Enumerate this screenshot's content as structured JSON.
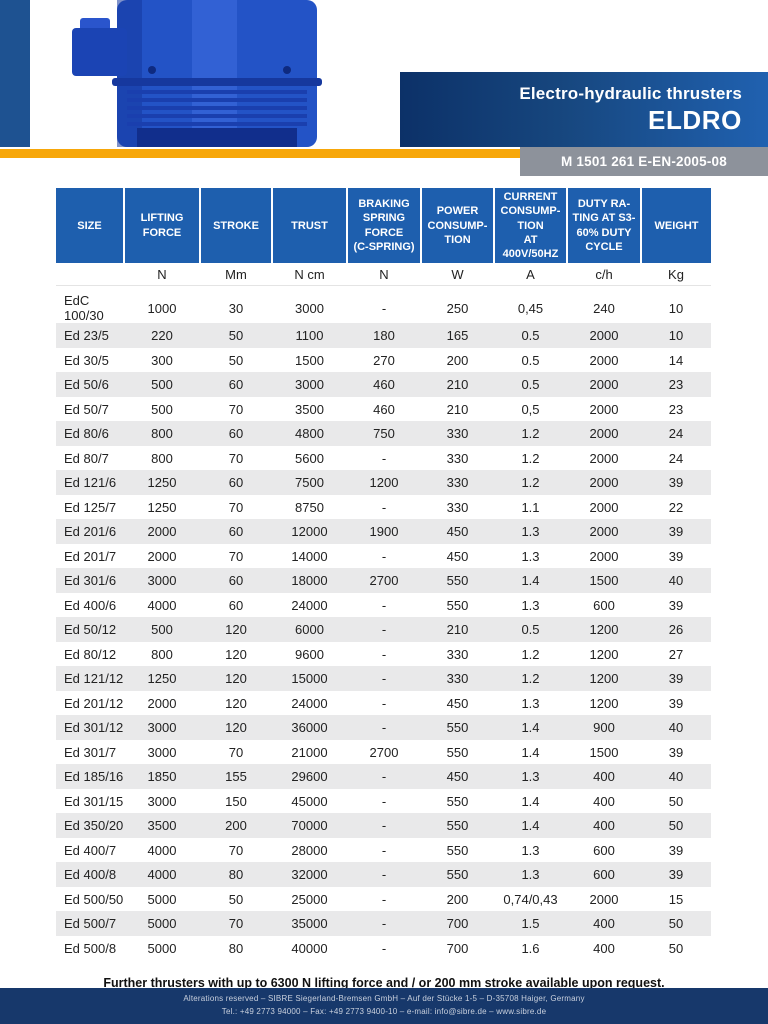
{
  "header": {
    "title_line1": "Electro-hydraulic thrusters",
    "title_line2": "ELDRO",
    "doc_number": "M 1501 261 E-EN-2005-08"
  },
  "colors": {
    "table_header_blue": "#1e5fae",
    "banner_gradient_start": "#0c3168",
    "banner_gradient_end": "#2061b0",
    "accent_orange": "#f7a70a",
    "doc_box_grey": "#8d929b",
    "row_alt_grey": "#e9e9ea",
    "footer_navy": "#17386b"
  },
  "table": {
    "headers": [
      "SIZE",
      "LIFTING\nFORCE",
      "STROKE",
      "TRUST",
      "BRAKING\nSPRING\nFORCE\n(C-SPRING)",
      "POWER\nCONSUMP-\nTION",
      "CURRENT\nCONSUMP-\nTION\nAT\n400V/50HZ",
      "DUTY RA-\nTING AT S3-\n60% DUTY\nCYCLE",
      "WEIGHT"
    ],
    "units": [
      "",
      "N",
      "Mm",
      "N cm",
      "N",
      "W",
      "A",
      "c/h",
      "Kg"
    ],
    "rows": [
      [
        "EdC 100/30",
        "1000",
        "30",
        "3000",
        "-",
        "250",
        "0,45",
        "240",
        "10"
      ],
      [
        "Ed 23/5",
        "220",
        "50",
        "1100",
        "180",
        "165",
        "0.5",
        "2000",
        "10"
      ],
      [
        "Ed 30/5",
        "300",
        "50",
        "1500",
        "270",
        "200",
        "0.5",
        "2000",
        "14"
      ],
      [
        "Ed 50/6",
        "500",
        "60",
        "3000",
        "460",
        "210",
        "0.5",
        "2000",
        "23"
      ],
      [
        "Ed 50/7",
        "500",
        "70",
        "3500",
        "460",
        "210",
        "0,5",
        "2000",
        "23"
      ],
      [
        "Ed 80/6",
        "800",
        "60",
        "4800",
        "750",
        "330",
        "1.2",
        "2000",
        "24"
      ],
      [
        "Ed 80/7",
        "800",
        "70",
        "5600",
        "-",
        "330",
        "1.2",
        "2000",
        "24"
      ],
      [
        "Ed 121/6",
        "1250",
        "60",
        "7500",
        "1200",
        "330",
        "1.2",
        "2000",
        "39"
      ],
      [
        "Ed 125/7",
        "1250",
        "70",
        "8750",
        "-",
        "330",
        "1.1",
        "2000",
        "22"
      ],
      [
        "Ed 201/6",
        "2000",
        "60",
        "12000",
        "1900",
        "450",
        "1.3",
        "2000",
        "39"
      ],
      [
        "Ed 201/7",
        "2000",
        "70",
        "14000",
        "-",
        "450",
        "1.3",
        "2000",
        "39"
      ],
      [
        "Ed 301/6",
        "3000",
        "60",
        "18000",
        "2700",
        "550",
        "1.4",
        "1500",
        "40"
      ],
      [
        "Ed 400/6",
        "4000",
        "60",
        "24000",
        "-",
        "550",
        "1.3",
        "600",
        "39"
      ],
      [
        "Ed 50/12",
        "500",
        "120",
        "6000",
        "-",
        "210",
        "0.5",
        "1200",
        "26"
      ],
      [
        "Ed 80/12",
        "800",
        "120",
        "9600",
        "-",
        "330",
        "1.2",
        "1200",
        "27"
      ],
      [
        "Ed 121/12",
        "1250",
        "120",
        "15000",
        "-",
        "330",
        "1.2",
        "1200",
        "39"
      ],
      [
        "Ed 201/12",
        "2000",
        "120",
        "24000",
        "-",
        "450",
        "1.3",
        "1200",
        "39"
      ],
      [
        "Ed 301/12",
        "3000",
        "120",
        "36000",
        "-",
        "550",
        "1.4",
        "900",
        "40"
      ],
      [
        "Ed 301/7",
        "3000",
        "70",
        "21000",
        "2700",
        "550",
        "1.4",
        "1500",
        "39"
      ],
      [
        "Ed 185/16",
        "1850",
        "155",
        "29600",
        "-",
        "450",
        "1.3",
        "400",
        "40"
      ],
      [
        "Ed 301/15",
        "3000",
        "150",
        "45000",
        "-",
        "550",
        "1.4",
        "400",
        "50"
      ],
      [
        "Ed 350/20",
        "3500",
        "200",
        "70000",
        "-",
        "550",
        "1.4",
        "400",
        "50"
      ],
      [
        "Ed 400/7",
        "4000",
        "70",
        "28000",
        "-",
        "550",
        "1.3",
        "600",
        "39"
      ],
      [
        "Ed 400/8",
        "4000",
        "80",
        "32000",
        "-",
        "550",
        "1.3",
        "600",
        "39"
      ],
      [
        "Ed 500/50",
        "5000",
        "50",
        "25000",
        "-",
        "200",
        "0,74/0,43",
        "2000",
        "15"
      ],
      [
        "Ed 500/7",
        "5000",
        "70",
        "35000",
        "-",
        "700",
        "1.5",
        "400",
        "50"
      ],
      [
        "Ed 500/8",
        "5000",
        "80",
        "40000",
        "-",
        "700",
        "1.6",
        "400",
        "50"
      ]
    ]
  },
  "note": "Further thrusters with up to 6300 N lifting force and / or 200 mm stroke available upon request.",
  "footer": {
    "line1": "Alterations reserved – SIBRE Siegerland-Bremsen GmbH – Auf der Stücke 1-5 – D-35708 Haiger, Germany",
    "line2": "Tel.: +49 2773 94000 – Fax: +49 2773 9400-10 – e-mail: info@sibre.de – www.sibre.de"
  }
}
